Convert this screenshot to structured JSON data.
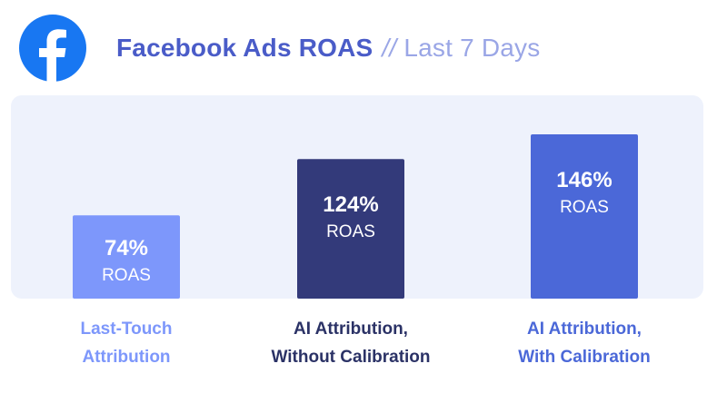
{
  "header": {
    "title": "Facebook Ads ROAS",
    "separator": "//",
    "period": "Last 7 Days",
    "logo_icon": "facebook-icon"
  },
  "chart_data": {
    "type": "bar",
    "categories": [
      [
        "Last-Touch",
        "Attribution"
      ],
      [
        "AI Attribution,",
        "Without Calibration"
      ],
      [
        "AI Attribution,",
        "With Calibration"
      ]
    ],
    "values": [
      74,
      124,
      146
    ],
    "value_labels": [
      "74%",
      "124%",
      "146%"
    ],
    "unit_label": "ROAS",
    "bar_colors": [
      "#7d97fb",
      "#333a7a",
      "#4b68d8"
    ],
    "label_colors": [
      "#7d97fb",
      "#2b3266",
      "#4b68d8"
    ],
    "ylim": [
      0,
      160
    ],
    "grid": false
  }
}
